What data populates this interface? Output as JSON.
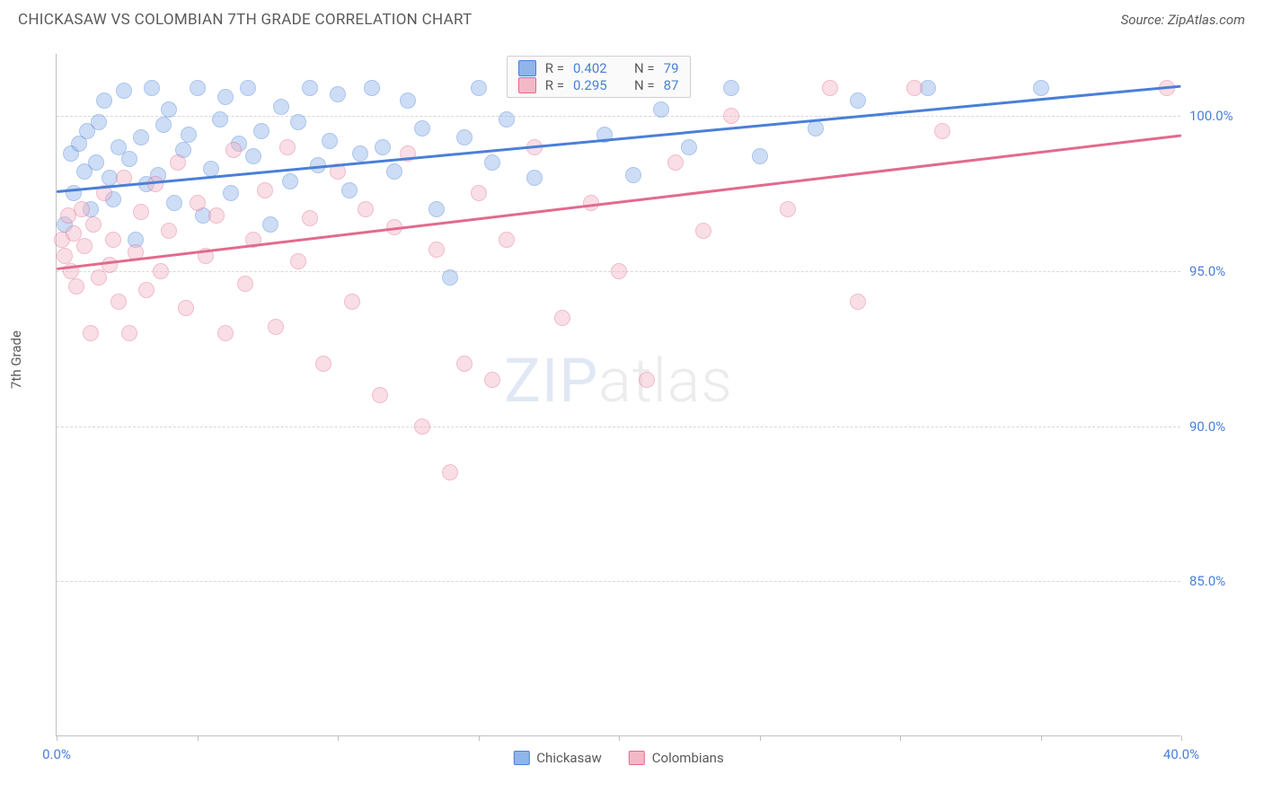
{
  "header": {
    "title": "CHICKASAW VS COLOMBIAN 7TH GRADE CORRELATION CHART",
    "source": "Source: ZipAtlas.com"
  },
  "chart": {
    "type": "scatter",
    "y_axis_label": "7th Grade",
    "xlim": [
      0,
      40
    ],
    "ylim": [
      80,
      102
    ],
    "x_ticks": [
      0,
      5,
      10,
      15,
      20,
      25,
      30,
      35,
      40
    ],
    "x_tick_labels": {
      "0": "0.0%",
      "40": "40.0%"
    },
    "y_grid": [
      85,
      90,
      95,
      100
    ],
    "y_tick_labels": {
      "85": "85.0%",
      "90": "90.0%",
      "95": "95.0%",
      "100": "100.0%"
    },
    "background_color": "#ffffff",
    "grid_color": "#d8d8d8",
    "axis_color": "#c0c0c0",
    "tick_label_color": "#4a7fd8",
    "point_radius": 9,
    "point_opacity": 0.45,
    "watermark": {
      "part1": "ZIP",
      "part2": "atlas"
    },
    "series": [
      {
        "name": "Chickasaw",
        "color_fill": "#8fb5ea",
        "color_stroke": "#4a7fd8",
        "trend": {
          "x0": 0,
          "y0": 97.6,
          "x1": 40,
          "y1": 101.0,
          "width": 2.5
        },
        "stats": {
          "R": "0.402",
          "N": "79"
        },
        "points": [
          [
            0.3,
            96.5
          ],
          [
            0.5,
            98.8
          ],
          [
            0.6,
            97.5
          ],
          [
            0.8,
            99.1
          ],
          [
            1.0,
            98.2
          ],
          [
            1.1,
            99.5
          ],
          [
            1.2,
            97.0
          ],
          [
            1.4,
            98.5
          ],
          [
            1.5,
            99.8
          ],
          [
            1.7,
            100.5
          ],
          [
            1.9,
            98.0
          ],
          [
            2.0,
            97.3
          ],
          [
            2.2,
            99.0
          ],
          [
            2.4,
            100.8
          ],
          [
            2.6,
            98.6
          ],
          [
            2.8,
            96.0
          ],
          [
            3.0,
            99.3
          ],
          [
            3.2,
            97.8
          ],
          [
            3.4,
            100.9
          ],
          [
            3.6,
            98.1
          ],
          [
            3.8,
            99.7
          ],
          [
            4.0,
            100.2
          ],
          [
            4.2,
            97.2
          ],
          [
            4.5,
            98.9
          ],
          [
            4.7,
            99.4
          ],
          [
            5.0,
            100.9
          ],
          [
            5.2,
            96.8
          ],
          [
            5.5,
            98.3
          ],
          [
            5.8,
            99.9
          ],
          [
            6.0,
            100.6
          ],
          [
            6.2,
            97.5
          ],
          [
            6.5,
            99.1
          ],
          [
            6.8,
            100.9
          ],
          [
            7.0,
            98.7
          ],
          [
            7.3,
            99.5
          ],
          [
            7.6,
            96.5
          ],
          [
            8.0,
            100.3
          ],
          [
            8.3,
            97.9
          ],
          [
            8.6,
            99.8
          ],
          [
            9.0,
            100.9
          ],
          [
            9.3,
            98.4
          ],
          [
            9.7,
            99.2
          ],
          [
            10.0,
            100.7
          ],
          [
            10.4,
            97.6
          ],
          [
            10.8,
            98.8
          ],
          [
            11.2,
            100.9
          ],
          [
            11.6,
            99.0
          ],
          [
            12.0,
            98.2
          ],
          [
            12.5,
            100.5
          ],
          [
            13.0,
            99.6
          ],
          [
            13.5,
            97.0
          ],
          [
            14.0,
            94.8
          ],
          [
            14.5,
            99.3
          ],
          [
            15.0,
            100.9
          ],
          [
            15.5,
            98.5
          ],
          [
            16.0,
            99.9
          ],
          [
            17.0,
            98.0
          ],
          [
            18.5,
            100.9
          ],
          [
            19.5,
            99.4
          ],
          [
            20.5,
            98.1
          ],
          [
            21.5,
            100.2
          ],
          [
            22.5,
            99.0
          ],
          [
            24.0,
            100.9
          ],
          [
            25.0,
            98.7
          ],
          [
            27.0,
            99.6
          ],
          [
            28.5,
            100.5
          ],
          [
            31.0,
            100.9
          ],
          [
            35.0,
            100.9
          ]
        ]
      },
      {
        "name": "Colombians",
        "color_fill": "#f3b8c6",
        "color_stroke": "#e26a8e",
        "trend": {
          "x0": 0,
          "y0": 95.1,
          "x1": 40,
          "y1": 99.4,
          "width": 2.5
        },
        "stats": {
          "R": "0.295",
          "N": "87"
        },
        "points": [
          [
            0.2,
            96.0
          ],
          [
            0.3,
            95.5
          ],
          [
            0.4,
            96.8
          ],
          [
            0.5,
            95.0
          ],
          [
            0.6,
            96.2
          ],
          [
            0.7,
            94.5
          ],
          [
            0.9,
            97.0
          ],
          [
            1.0,
            95.8
          ],
          [
            1.2,
            93.0
          ],
          [
            1.3,
            96.5
          ],
          [
            1.5,
            94.8
          ],
          [
            1.7,
            97.5
          ],
          [
            1.9,
            95.2
          ],
          [
            2.0,
            96.0
          ],
          [
            2.2,
            94.0
          ],
          [
            2.4,
            98.0
          ],
          [
            2.6,
            93.0
          ],
          [
            2.8,
            95.6
          ],
          [
            3.0,
            96.9
          ],
          [
            3.2,
            94.4
          ],
          [
            3.5,
            97.8
          ],
          [
            3.7,
            95.0
          ],
          [
            4.0,
            96.3
          ],
          [
            4.3,
            98.5
          ],
          [
            4.6,
            93.8
          ],
          [
            5.0,
            97.2
          ],
          [
            5.3,
            95.5
          ],
          [
            5.7,
            96.8
          ],
          [
            6.0,
            93.0
          ],
          [
            6.3,
            98.9
          ],
          [
            6.7,
            94.6
          ],
          [
            7.0,
            96.0
          ],
          [
            7.4,
            97.6
          ],
          [
            7.8,
            93.2
          ],
          [
            8.2,
            99.0
          ],
          [
            8.6,
            95.3
          ],
          [
            9.0,
            96.7
          ],
          [
            9.5,
            92.0
          ],
          [
            10.0,
            98.2
          ],
          [
            10.5,
            94.0
          ],
          [
            11.0,
            97.0
          ],
          [
            11.5,
            91.0
          ],
          [
            12.0,
            96.4
          ],
          [
            12.5,
            98.8
          ],
          [
            13.0,
            90.0
          ],
          [
            13.5,
            95.7
          ],
          [
            14.0,
            88.5
          ],
          [
            14.5,
            92.0
          ],
          [
            15.0,
            97.5
          ],
          [
            15.5,
            91.5
          ],
          [
            16.0,
            96.0
          ],
          [
            17.0,
            99.0
          ],
          [
            18.0,
            93.5
          ],
          [
            19.0,
            97.2
          ],
          [
            20.0,
            95.0
          ],
          [
            21.0,
            91.5
          ],
          [
            22.0,
            98.5
          ],
          [
            23.0,
            96.3
          ],
          [
            24.0,
            100.0
          ],
          [
            26.0,
            97.0
          ],
          [
            27.5,
            100.9
          ],
          [
            28.5,
            94.0
          ],
          [
            30.5,
            100.9
          ],
          [
            31.5,
            99.5
          ],
          [
            39.5,
            100.9
          ]
        ]
      }
    ],
    "legend_bottom": [
      "Chickasaw",
      "Colombians"
    ]
  }
}
